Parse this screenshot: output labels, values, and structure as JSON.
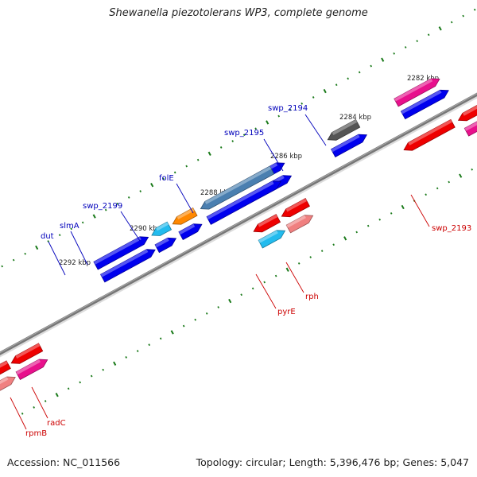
{
  "title": "Shewanella piezotolerans WP3, complete genome",
  "footer": {
    "accession": "Accession: NC_011566",
    "topology": "Topology: circular; Length: 5,396,476 bp; Genes: 5,047"
  },
  "ticks": [
    {
      "label": "2282 kbp"
    },
    {
      "label": "2284 kbp"
    },
    {
      "label": "2286 kbp"
    },
    {
      "label": "2288 kbp"
    },
    {
      "label": "2290 kbp"
    },
    {
      "label": "2292 kbp"
    }
  ],
  "genes": [
    {
      "name": "swp_2194",
      "color": "#0000bb"
    },
    {
      "name": "swp_2195",
      "color": "#0000bb"
    },
    {
      "name": "folE",
      "color": "#0000bb"
    },
    {
      "name": "swp_2199",
      "color": "#0000bb"
    },
    {
      "name": "slmA",
      "color": "#0000bb"
    },
    {
      "name": "dut",
      "color": "#0000bb"
    },
    {
      "name": "swp_2193",
      "color": "#cc0000"
    },
    {
      "name": "rph",
      "color": "#cc0000"
    },
    {
      "name": "pyrE",
      "color": "#cc0000"
    },
    {
      "name": "radC",
      "color": "#cc0000"
    },
    {
      "name": "rpmB",
      "color": "#cc0000"
    }
  ],
  "colors": {
    "blue": "#0000ee",
    "red": "#ee0000",
    "pink": "#e8108c",
    "lightpink": "#f08080",
    "cyan": "#22bbee",
    "orange": "#ff8800",
    "steel": "#4a7fb0",
    "gray": "#555555",
    "tick": "#1a7a1a"
  }
}
